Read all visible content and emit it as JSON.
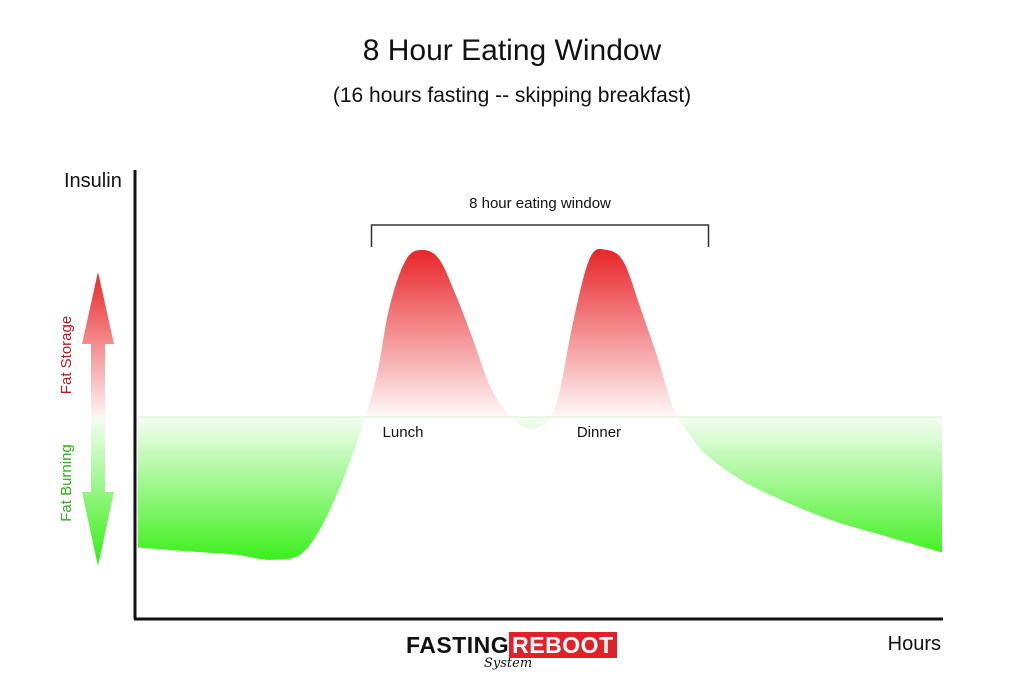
{
  "chart_data": {
    "type": "area",
    "title": "8 Hour Eating Window",
    "subtitle": "(16 hours fasting -- skipping breakfast)",
    "xlabel": "Hours",
    "ylabel": "Insulin",
    "baseline": 0,
    "xlim": [
      0,
      24
    ],
    "ylim": [
      -8,
      8
    ],
    "x": [
      0,
      1,
      2,
      3,
      4,
      5,
      6,
      7,
      7.5,
      8,
      8.5,
      9,
      9.5,
      10,
      10.5,
      11,
      11.5,
      12,
      12.5,
      13,
      13.5,
      14,
      14.5,
      15,
      15.5,
      16,
      16.5,
      17,
      18,
      19,
      20,
      21,
      22,
      23,
      24
    ],
    "y": [
      -5.4,
      -5.5,
      -5.6,
      -5.7,
      -5.9,
      -5.5,
      -3.0,
      1.0,
      4.5,
      6.5,
      6.9,
      6.5,
      5.0,
      3.2,
      1.3,
      0.2,
      -0.4,
      -0.4,
      0.6,
      4.0,
      6.6,
      6.9,
      6.4,
      4.5,
      2.5,
      0.3,
      -0.8,
      -1.6,
      -2.6,
      -3.3,
      -3.9,
      -4.4,
      -4.8,
      -5.2,
      -5.6
    ],
    "annotations": [
      {
        "text": "8 hour eating window",
        "x_start": 7,
        "x_end": 17
      },
      {
        "text": "Lunch",
        "x": 7.3
      },
      {
        "text": "Dinner",
        "x": 13.1
      }
    ],
    "side_labels": {
      "up": "Fat Storage",
      "down": "Fat Burning"
    },
    "colors": {
      "storage": "#e8262a",
      "burning": "#33ee11",
      "axis": "#111111"
    }
  },
  "brand": {
    "main_a": "FASTING",
    "main_b": "REBOOT",
    "sub": "System"
  }
}
